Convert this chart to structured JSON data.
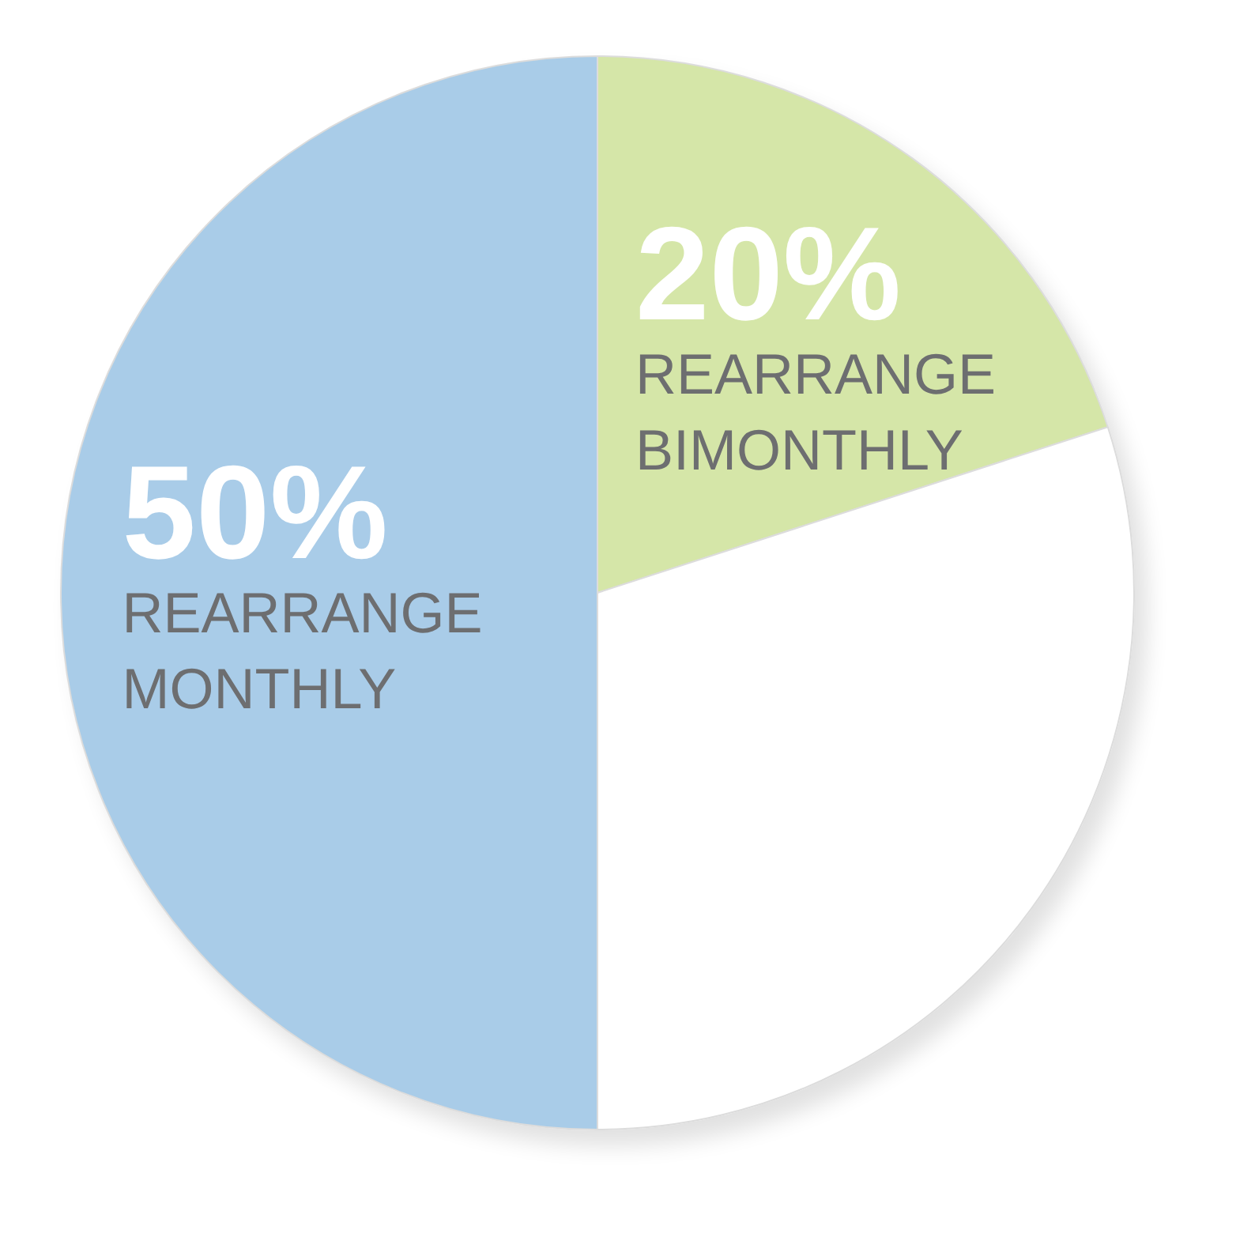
{
  "chart_data": {
    "type": "pie",
    "categories": [
      "REARRANGE BIMONTHLY",
      null,
      "REARRANGE MONTHLY"
    ],
    "values": [
      20,
      30,
      50
    ],
    "colors": [
      "#d5e6a8",
      "#ffffff",
      "#a9cce8"
    ],
    "value_labels": [
      "20%",
      null,
      "50%"
    ],
    "legend": false
  }
}
